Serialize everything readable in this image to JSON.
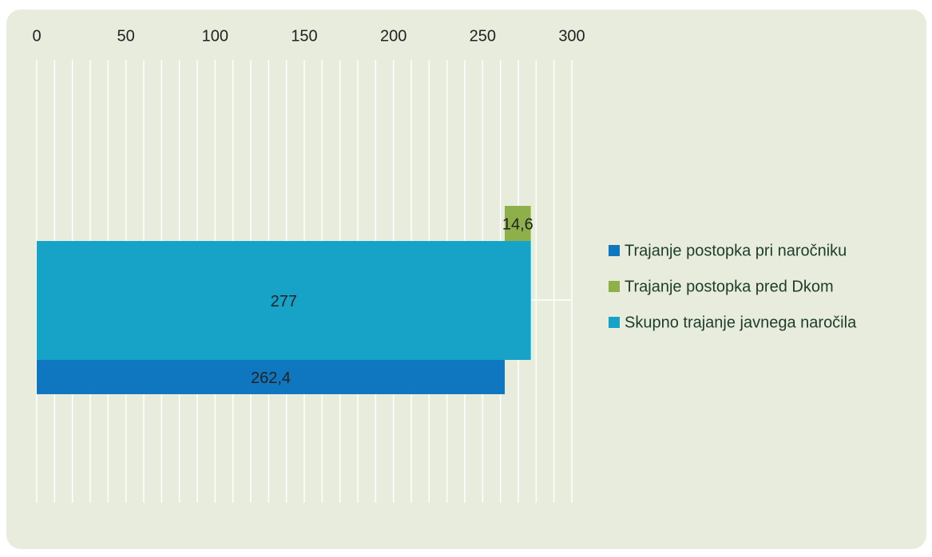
{
  "chart_data": {
    "type": "bar",
    "orientation": "horizontal",
    "series": [
      {
        "name": "Trajanje postopka pri naročniku",
        "color": "#0e77c0",
        "values": [
          262.4
        ],
        "value_labels": [
          "262,4"
        ]
      },
      {
        "name": "Trajanje postopka pred Dkom",
        "color": "#8db04a",
        "values": [
          14.6
        ],
        "value_labels": [
          "14,6"
        ]
      },
      {
        "name": "Skupno trajanje javnega naročila",
        "color": "#17a2c8",
        "values": [
          277
        ],
        "value_labels": [
          "277"
        ]
      }
    ],
    "xlim": [
      0,
      300
    ],
    "xticks": [
      0,
      50,
      100,
      150,
      200,
      250,
      300
    ],
    "minor_xticks": [
      0,
      10,
      20,
      30,
      40,
      50,
      60,
      70,
      80,
      90,
      100,
      110,
      120,
      130,
      140,
      150,
      160,
      170,
      180,
      190,
      200,
      210,
      220,
      230,
      240,
      250,
      260,
      270,
      280,
      290,
      300
    ],
    "grid": true,
    "legend": "right"
  }
}
